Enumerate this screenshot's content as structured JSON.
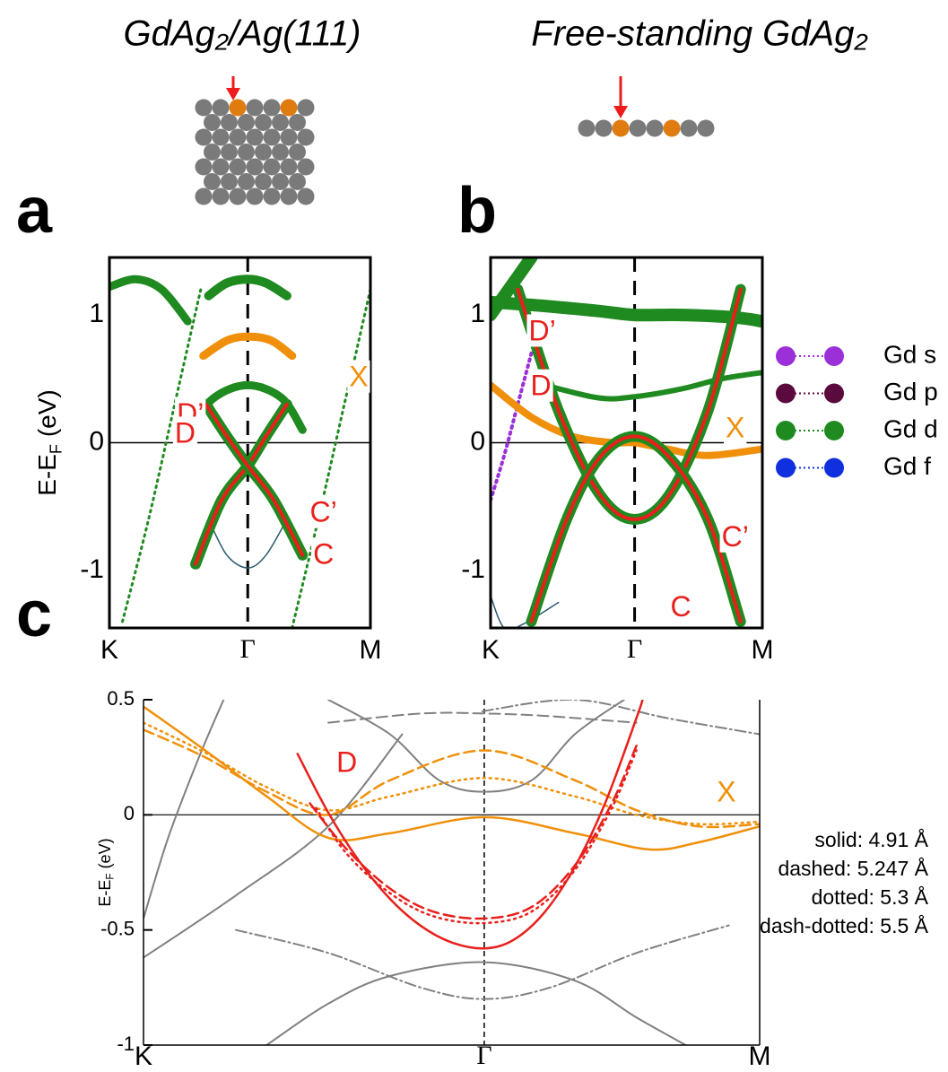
{
  "chart_data": [
    {
      "type": "line",
      "panel": "a",
      "title": "GdAg₂/Ag(111)",
      "ylabel": [
        "E-E",
        "F",
        " (eV)"
      ],
      "xlim": [
        0,
        1
      ],
      "xticks": [
        {
          "value": 0,
          "label": "K"
        },
        {
          "value": 0.53,
          "label": "Γ"
        },
        {
          "value": 1,
          "label": "M"
        }
      ],
      "ylim": [
        -1.45,
        1.45
      ],
      "yticks": [
        -1,
        0,
        1
      ],
      "series": [
        {
          "color": "#1f8a1f",
          "width": 9,
          "dash": "solid",
          "x": [
            0.0,
            0.1,
            0.2,
            0.3
          ],
          "values": [
            1.22,
            1.28,
            1.2,
            0.95
          ]
        },
        {
          "color": "#1f8a1f",
          "width": 3,
          "dash": "dotted",
          "x": [
            0.05,
            0.15,
            0.25,
            0.35
          ],
          "values": [
            -1.4,
            -0.6,
            0.3,
            1.2
          ]
        },
        {
          "color": "#1f8a1f",
          "width": 3,
          "dash": "dotted",
          "x": [
            0.7,
            0.8,
            0.9,
            1.0
          ],
          "values": [
            -1.45,
            -0.6,
            0.3,
            1.2
          ]
        },
        {
          "color": "#1f8a1f",
          "width": 10,
          "dash": "solid",
          "x": [
            0.38,
            0.45,
            0.53,
            0.6,
            0.68
          ],
          "values": [
            1.15,
            1.25,
            1.28,
            1.25,
            1.15
          ]
        },
        {
          "color": "#f0900a",
          "width": 9,
          "dash": "solid",
          "x": [
            0.36,
            0.45,
            0.53,
            0.62,
            0.7
          ],
          "values": [
            0.68,
            0.8,
            0.83,
            0.8,
            0.68
          ]
        },
        {
          "color": "#1f8a1f",
          "width": 9,
          "dash": "solid",
          "x": [
            0.3,
            0.4,
            0.53,
            0.66,
            0.74
          ],
          "values": [
            0.1,
            0.35,
            0.45,
            0.35,
            0.1
          ]
        },
        {
          "color": "#2a5a70",
          "width": 1.5,
          "dash": "solid",
          "x": [
            0.38,
            0.45,
            0.53,
            0.6,
            0.68
          ],
          "values": [
            -0.6,
            -0.88,
            -0.98,
            -0.88,
            -0.6
          ]
        },
        {
          "color": "#e8201c",
          "width": 4,
          "glow": "#1f8a1f",
          "dash": "solid",
          "x": [
            0.33,
            0.43,
            0.53,
            0.6,
            0.68
          ],
          "values": [
            -0.95,
            -0.45,
            -0.18,
            0.05,
            0.3
          ]
        },
        {
          "color": "#e8201c",
          "width": 4,
          "glow": "#1f8a1f",
          "dash": "solid",
          "x": [
            0.37,
            0.45,
            0.53,
            0.63,
            0.74
          ],
          "values": [
            0.3,
            0.05,
            -0.18,
            -0.45,
            -0.88
          ]
        }
      ],
      "annotations": [
        {
          "text": "X",
          "x": 0.955,
          "y": 0.5,
          "color": "#f0900a"
        },
        {
          "text": "D’",
          "x": 0.31,
          "y": 0.21,
          "color": "#e8201c"
        },
        {
          "text": "D",
          "x": 0.29,
          "y": 0.06,
          "color": "#e8201c"
        },
        {
          "text": "C’",
          "x": 0.82,
          "y": -0.56,
          "color": "#e8201c"
        },
        {
          "text": "C",
          "x": 0.82,
          "y": -0.89,
          "color": "#e8201c"
        }
      ]
    },
    {
      "type": "line",
      "panel": "b",
      "title": "Free-standing GdAg₂",
      "xlim": [
        0,
        1
      ],
      "xticks": [
        {
          "value": 0,
          "label": "K"
        },
        {
          "value": 0.53,
          "label": "Γ"
        },
        {
          "value": 1,
          "label": "M"
        }
      ],
      "ylim": [
        -1.45,
        1.45
      ],
      "yticks": [
        -1,
        0,
        1
      ],
      "series": [
        {
          "color": "#1f8a1f",
          "width": 14,
          "dash": "solid",
          "x": [
            0,
            0.2,
            0.4,
            0.53,
            0.7,
            0.9,
            1
          ],
          "values": [
            1.1,
            1.07,
            1.03,
            1.0,
            1.0,
            0.98,
            0.95
          ]
        },
        {
          "color": "#1f8a1f",
          "width": 14,
          "dash": "solid",
          "x": [
            0,
            0.05,
            0.1,
            0.15
          ],
          "values": [
            1.0,
            1.15,
            1.3,
            1.45
          ]
        },
        {
          "color": "#1f8a1f",
          "width": 6,
          "dash": "solid",
          "x": [
            0.2,
            0.4,
            0.53,
            0.7,
            0.85,
            1
          ],
          "values": [
            0.45,
            0.35,
            0.36,
            0.42,
            0.5,
            0.55
          ]
        },
        {
          "color": "#9b30d9",
          "width": 4,
          "dash": "dotted",
          "x": [
            0,
            0.05,
            0.1,
            0.15
          ],
          "values": [
            -0.45,
            -0.1,
            0.3,
            0.7
          ]
        },
        {
          "color": "#f0900a",
          "width": 8,
          "dash": "solid",
          "x": [
            0,
            0.15,
            0.3,
            0.45,
            0.53,
            0.65,
            0.8,
            1
          ],
          "values": [
            0.45,
            0.2,
            0.05,
            0.0,
            0.0,
            -0.05,
            -0.1,
            -0.05
          ]
        },
        {
          "color": "#2a5a70",
          "width": 1.5,
          "dash": "solid",
          "x": [
            0,
            0.05,
            0.12,
            0.25
          ],
          "values": [
            -1.2,
            -1.45,
            -1.42,
            -1.25
          ]
        },
        {
          "color": "#e8201c",
          "width": 4,
          "glow": "#1f8a1f",
          "dash": "solid",
          "x": [
            0.1,
            0.25,
            0.4,
            0.53,
            0.66,
            0.8,
            0.92
          ],
          "values": [
            1.2,
            0.25,
            -0.4,
            -0.6,
            -0.4,
            0.25,
            1.2
          ]
        },
        {
          "color": "#e8201c",
          "width": 4,
          "glow": "#1f8a1f",
          "dash": "solid",
          "x": [
            0.15,
            0.28,
            0.4,
            0.53,
            0.66,
            0.8,
            0.92
          ],
          "values": [
            -1.4,
            -0.6,
            -0.12,
            0.05,
            -0.12,
            -0.6,
            -1.4
          ]
        }
      ],
      "annotations": [
        {
          "text": "D’",
          "x": 0.19,
          "y": 0.86,
          "color": "#e8201c"
        },
        {
          "text": "D",
          "x": 0.185,
          "y": 0.43,
          "color": "#e8201c"
        },
        {
          "text": "X",
          "x": 0.9,
          "y": 0.1,
          "color": "#f0900a"
        },
        {
          "text": "C’",
          "x": 0.9,
          "y": -0.75,
          "color": "#e8201c"
        },
        {
          "text": "C",
          "x": 0.7,
          "y": -1.3,
          "color": "#e8201c"
        }
      ],
      "legend": [
        {
          "label": "Gd s",
          "color": "#9b30d9"
        },
        {
          "label": "Gd p",
          "color": "#5a0a3c"
        },
        {
          "label": "Gd d",
          "color": "#1f8a1f"
        },
        {
          "label": "Gd f",
          "color": "#1030e0"
        }
      ]
    },
    {
      "type": "line",
      "panel": "c",
      "ylabel": [
        "E-E",
        "F",
        " (eV)"
      ],
      "xlim": [
        0,
        1
      ],
      "xticks": [
        {
          "value": 0,
          "label": "K"
        },
        {
          "value": 0.553,
          "label": "Γ"
        },
        {
          "value": 1,
          "label": "M"
        }
      ],
      "ylim": [
        -1,
        0.5
      ],
      "yticks": [
        -1,
        -0.5,
        0,
        0.5
      ],
      "series": [
        {
          "color": "#808080",
          "width": 2,
          "dash": "solid",
          "x": [
            0.0,
            0.04,
            0.09,
            0.13
          ],
          "values": [
            -0.45,
            -0.1,
            0.25,
            0.5
          ]
        },
        {
          "color": "#808080",
          "width": 2,
          "dash": "solid",
          "x": [
            0.0,
            0.15,
            0.3,
            0.42
          ],
          "values": [
            -0.62,
            -0.35,
            -0.05,
            0.35
          ]
        },
        {
          "color": "#808080",
          "width": 2,
          "dash": "solid",
          "x": [
            0.2,
            0.3,
            0.4,
            0.553,
            0.7,
            0.8,
            0.88
          ],
          "values": [
            -1,
            -0.82,
            -0.7,
            -0.64,
            -0.72,
            -0.88,
            -1
          ]
        },
        {
          "color": "#808080",
          "width": 2,
          "dash": "solid",
          "x": [
            0.3,
            0.4,
            0.48,
            0.553,
            0.63,
            0.7,
            0.78
          ],
          "values": [
            0.5,
            0.35,
            0.15,
            0.1,
            0.15,
            0.35,
            0.5
          ]
        },
        {
          "color": "#808080",
          "width": 2,
          "dash": "dashed",
          "x": [
            0.3,
            0.45,
            0.553,
            0.65,
            0.8
          ],
          "values": [
            0.4,
            0.44,
            0.44,
            0.43,
            0.4
          ]
        },
        {
          "color": "#808080",
          "width": 2,
          "dash": "dashdot",
          "x": [
            0.55,
            0.7,
            0.85,
            1
          ],
          "values": [
            0.45,
            0.5,
            0.42,
            0.35
          ]
        },
        {
          "color": "#808080",
          "width": 2,
          "dash": "dashdot",
          "x": [
            0.15,
            0.3,
            0.45,
            0.553,
            0.66,
            0.8,
            0.95
          ],
          "values": [
            -0.5,
            -0.6,
            -0.75,
            -0.8,
            -0.75,
            -0.6,
            -0.48
          ]
        },
        {
          "color": "#f0900a",
          "width": 2.5,
          "dash": "solid",
          "x": [
            0,
            0.1,
            0.2,
            0.3,
            0.4,
            0.553,
            0.7,
            0.82,
            0.9,
            1
          ],
          "values": [
            0.47,
            0.28,
            0.08,
            -0.1,
            -0.08,
            -0.01,
            -0.08,
            -0.15,
            -0.12,
            -0.05
          ]
        },
        {
          "color": "#f0900a",
          "width": 2.5,
          "dash": "dashed",
          "x": [
            0,
            0.1,
            0.2,
            0.3,
            0.4,
            0.553,
            0.7,
            0.8,
            0.9,
            1
          ],
          "values": [
            0.37,
            0.25,
            0.1,
            0.0,
            0.15,
            0.28,
            0.15,
            0.02,
            -0.05,
            -0.04
          ]
        },
        {
          "color": "#f0900a",
          "width": 2.5,
          "dash": "dotted",
          "x": [
            0,
            0.1,
            0.2,
            0.3,
            0.4,
            0.553,
            0.7,
            0.8,
            0.9,
            1
          ],
          "values": [
            0.4,
            0.27,
            0.12,
            0.02,
            0.08,
            0.16,
            0.08,
            0.0,
            -0.04,
            -0.03
          ]
        },
        {
          "color": "#e8201c",
          "width": 2.5,
          "dash": "solid",
          "x": [
            0.25,
            0.3,
            0.35,
            0.4,
            0.45,
            0.5,
            0.553,
            0.6,
            0.65,
            0.7,
            0.75,
            0.8,
            0.81
          ],
          "values": [
            0.265,
            0.009,
            -0.201,
            -0.365,
            -0.482,
            -0.554,
            -0.58,
            -0.544,
            -0.426,
            -0.226,
            0.056,
            0.42,
            0.5
          ]
        },
        {
          "color": "#e8201c",
          "width": 2.5,
          "dash": "dashed",
          "x": [
            0.27,
            0.33,
            0.4,
            0.47,
            0.553,
            0.63,
            0.7,
            0.76,
            0.8
          ],
          "values": [
            0.05,
            -0.15,
            -0.32,
            -0.42,
            -0.45,
            -0.4,
            -0.22,
            0.05,
            0.3
          ]
        },
        {
          "color": "#e8201c",
          "width": 2.5,
          "dash": "dotted",
          "x": [
            0.28,
            0.33,
            0.4,
            0.47,
            0.553,
            0.63,
            0.7,
            0.76,
            0.8
          ],
          "values": [
            0.03,
            -0.17,
            -0.34,
            -0.44,
            -0.47,
            -0.42,
            -0.24,
            0.03,
            0.28
          ]
        }
      ],
      "annotations": [
        {
          "text": "D",
          "x": 0.33,
          "y": 0.22,
          "color": "#e8201c"
        },
        {
          "text": "X",
          "x": 0.946,
          "y": 0.09,
          "color": "#f0900a"
        }
      ],
      "notes": [
        "solid: 4.91 Å",
        "dashed: 5.247 Å",
        "dotted: 5.3 Å",
        "dash-dotted: 5.5 Å"
      ]
    }
  ]
}
